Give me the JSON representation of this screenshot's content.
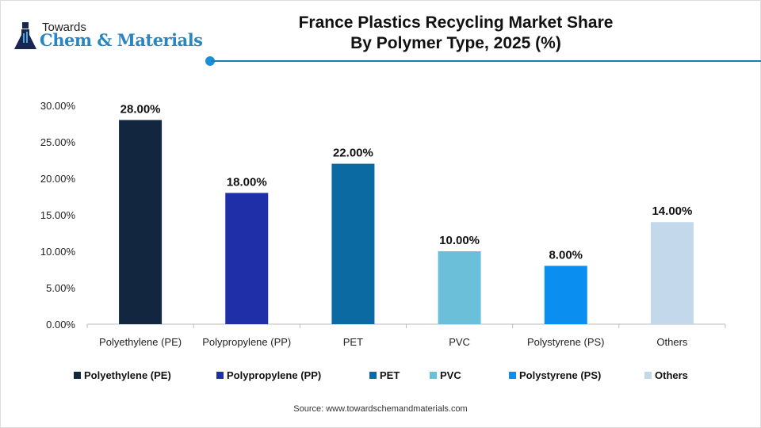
{
  "logo": {
    "line1": "Towards",
    "line2": "Chem & Materials"
  },
  "title_line1": "France Plastics Recycling Market Share",
  "title_line2": "By Polymer Type, 2025 (%)",
  "source": "Source: www.towardschemandmaterials.com",
  "chart_data": {
    "type": "bar",
    "title": "France Plastics Recycling Market Share By Polymer Type, 2025 (%)",
    "categories": [
      "Polyethylene (PE)",
      "Polypropylene (PP)",
      "PET",
      "PVC",
      "Polystyrene (PS)",
      "Others"
    ],
    "values": [
      28.0,
      18.0,
      22.0,
      10.0,
      8.0,
      14.0
    ],
    "data_labels": [
      "28.00%",
      "18.00%",
      "22.00%",
      "10.00%",
      "8.00%",
      "14.00%"
    ],
    "colors": [
      "#12263f",
      "#1f2fa8",
      "#0a6aa1",
      "#6bbfd9",
      "#0a8ff0",
      "#c3d8ea"
    ],
    "yticks": [
      "0.00%",
      "5.00%",
      "10.00%",
      "15.00%",
      "20.00%",
      "25.00%",
      "30.00%"
    ],
    "ylim": [
      0,
      30
    ],
    "grid": false,
    "legend": "bottom",
    "xlabel": "",
    "ylabel": ""
  }
}
